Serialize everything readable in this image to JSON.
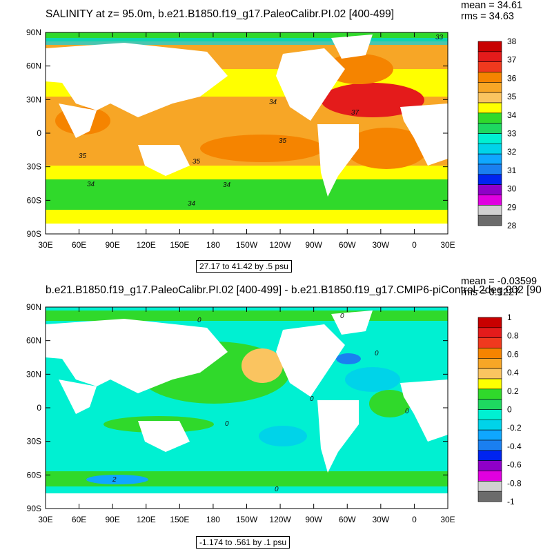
{
  "top": {
    "title": "SALINITY at z=  95.0m, b.e21.B1850.f19_g17.PaleoCalibr.PI.02 [400-499]",
    "mean": "mean = 34.61",
    "rms": "rms = 34.63",
    "range_text": "27.17 to 41.42 by .5 psu",
    "colorbar": {
      "labels": [
        "38",
        "37",
        "36",
        "35",
        "34",
        "33",
        "32",
        "31",
        "30",
        "29",
        "28"
      ],
      "colors": [
        "#c80000",
        "#e41b1b",
        "#f0391e",
        "#f58400",
        "#f7a626",
        "#fac460",
        "#ffff00",
        "#30d92b",
        "#1ed860",
        "#00f0d2",
        "#00d3e9",
        "#0fa7ff",
        "#1a7ff0",
        "#0024f0",
        "#8e00c8",
        "#e000e0",
        "#d0d0d0",
        "#6b6b6b"
      ]
    },
    "contour_labels": [
      "34",
      "35",
      "35",
      "35",
      "34",
      "34",
      "34",
      "37",
      "33"
    ]
  },
  "bottom": {
    "title": "b.e21.B1850.f19_g17.PaleoCalibr.PI.02 [400-499] - b.e21.B1850.f19_g17.CMIP6-piControl-2deg.002 [90",
    "mean": "mean = -0.03599",
    "rms": "rms = 0.1227",
    "range_text": "-1.174 to .561 by .1 psu",
    "colorbar": {
      "labels": [
        "1",
        "0.8",
        "0.6",
        "0.4",
        "0.2",
        "0",
        "-0.2",
        "-0.4",
        "-0.6",
        "-0.8",
        "-1"
      ],
      "colors": [
        "#c80000",
        "#e41b1b",
        "#f0391e",
        "#f58400",
        "#f7a626",
        "#fac460",
        "#ffff00",
        "#30d92b",
        "#1ed860",
        "#00f0d2",
        "#00d3e9",
        "#0fa7ff",
        "#1a7ff0",
        "#0024f0",
        "#8e00c8",
        "#e000e0",
        "#d0d0d0",
        "#6b6b6b"
      ]
    },
    "contour_labels": [
      "0",
      "0",
      "0",
      "0",
      "0",
      "0",
      "0",
      "2"
    ]
  },
  "axes": {
    "x_ticks": [
      "30E",
      "60E",
      "90E",
      "120E",
      "150E",
      "180",
      "150W",
      "120W",
      "90W",
      "60W",
      "30W",
      "0",
      "30E"
    ],
    "y_ticks": [
      "90N",
      "60N",
      "30N",
      "0",
      "30S",
      "60S",
      "90S"
    ]
  }
}
